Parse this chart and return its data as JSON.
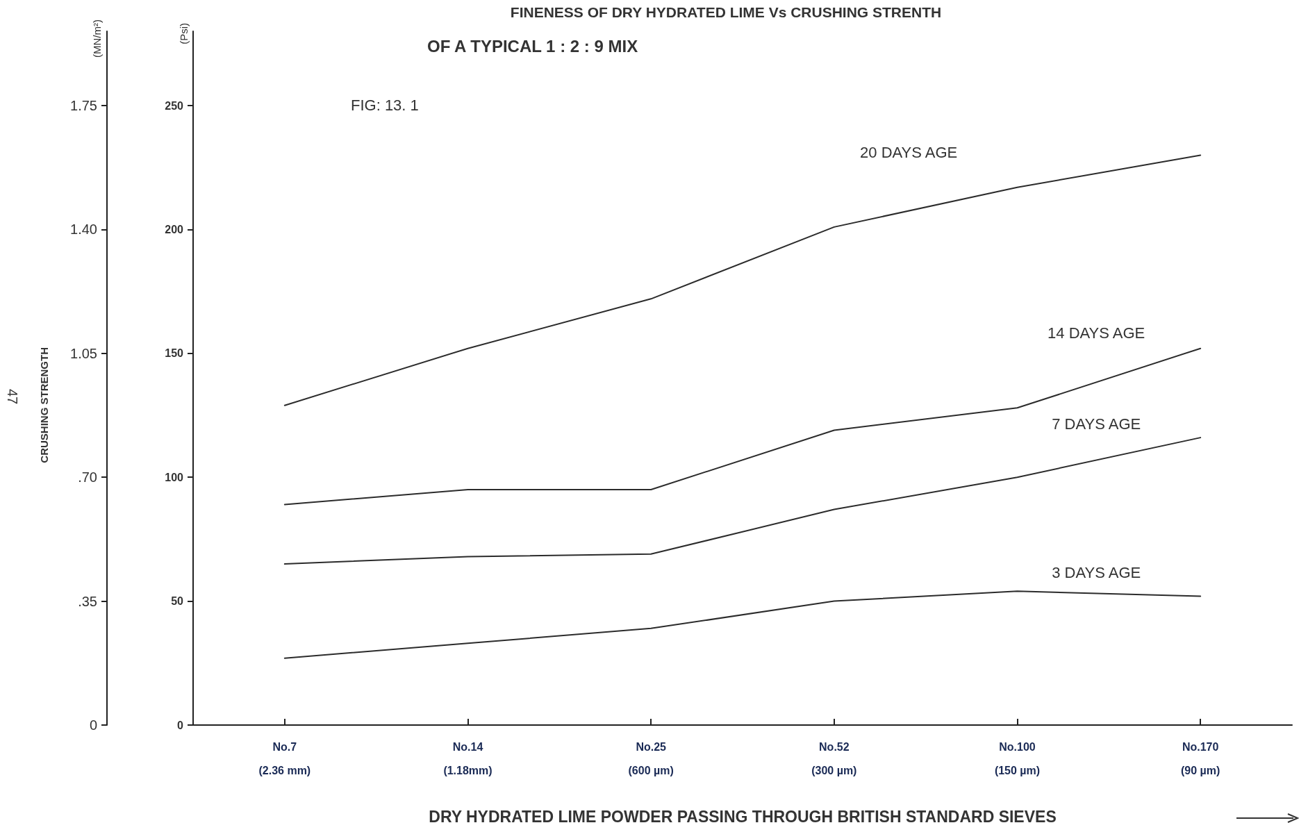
{
  "chart_data": {
    "type": "line",
    "title": "FINENESS OF DRY HYDRATED LIME Vs CRUSHING STRENTH",
    "subtitle": "OF A TYPICAL 1 : 2 : 9 MIX",
    "xlabel": "DRY HYDRATED LIME POWDER PASSING THROUGH BRITISH STANDARD SIEVES",
    "ylabel": "(Psi)",
    "y2label": "CRUSHING STRENGTH",
    "annotations": [
      "(MN/m²)",
      "FIG: 13. 1",
      "47"
    ],
    "categories": [
      "No.7\n(2.36 mm)",
      "No.14\n(1.18mm)",
      "No.25\n(600 µm)",
      "No.52\n(300 µm)",
      "No.100\n(150 µm)",
      "No.170\n(90 µm)"
    ],
    "ylim": [
      0,
      280
    ],
    "yticks": [
      0,
      50,
      100,
      150,
      200,
      250
    ],
    "y2lim": [
      0,
      1.96
    ],
    "y2ticks": [
      0,
      {
        "value": 0.35,
        "label": ".35"
      },
      {
        "value": 0.7,
        "label": ".70"
      },
      1.05,
      {
        "value": 1.4,
        "label": "1.40"
      },
      1.75
    ],
    "series": [
      {
        "name": "20 DAYS AGE",
        "color": "#2b2b2b",
        "values": [
          129,
          152,
          172,
          201,
          217,
          230
        ]
      },
      {
        "name": "14 DAYS AGE",
        "color": "#2b2b2b",
        "values": [
          89,
          95,
          95,
          119,
          128,
          152
        ]
      },
      {
        "name": "7 DAYS AGE",
        "color": "#2b2b2b",
        "values": [
          65,
          68,
          69,
          87,
          100,
          116
        ]
      },
      {
        "name": "3 DAYS AGE",
        "color": "#2b2b2b",
        "values": [
          27,
          33,
          39,
          50,
          54,
          52
        ]
      }
    ],
    "grid": false,
    "legend": false,
    "marker": "none",
    "line_style": "solid"
  }
}
